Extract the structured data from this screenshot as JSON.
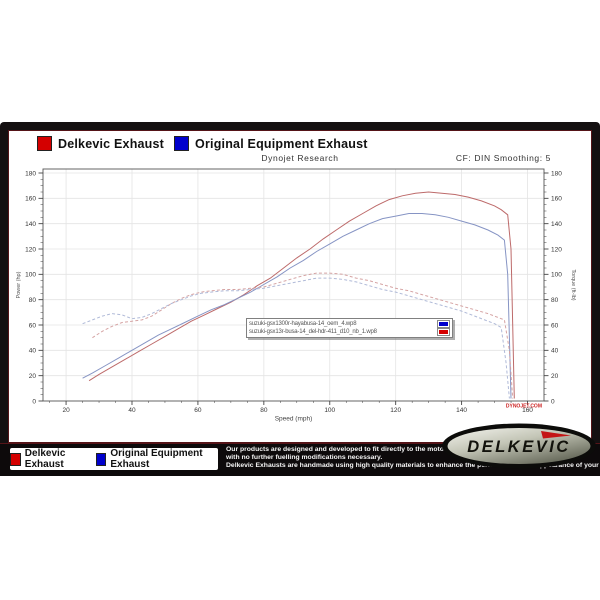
{
  "top_legend": {
    "items": [
      {
        "label": "Delkevic Exhaust",
        "color": "#d40000"
      },
      {
        "label": "Original Equipment Exhaust",
        "color": "#0000cc"
      }
    ]
  },
  "chart": {
    "title": "Dynojet Research",
    "smoothing_label": "CF: DIN Smoothing: 5",
    "watermark": "DYNOJET.COM"
  },
  "chart_data": {
    "type": "line",
    "title": "Dynojet Research",
    "xlabel": "Speed (mph)",
    "ylabel_left": "Power (hp)",
    "ylabel_right": "Torque (ft-lb)",
    "xlim": [
      13,
      165
    ],
    "ylim": [
      0,
      180
    ],
    "x_ticks": [
      20,
      40,
      60,
      80,
      100,
      120,
      140,
      160
    ],
    "y_ticks": [
      0,
      20,
      40,
      60,
      80,
      100,
      120,
      140,
      160,
      180
    ],
    "grid": true,
    "legend_position": "center",
    "series": [
      {
        "name": "Delkevic Exhaust - Power",
        "axis": "left",
        "style": "solid",
        "color": "#bd6a6a",
        "points": [
          [
            27,
            16
          ],
          [
            30,
            21
          ],
          [
            34,
            27
          ],
          [
            38,
            33
          ],
          [
            42,
            39
          ],
          [
            46,
            45
          ],
          [
            50,
            51
          ],
          [
            54,
            57
          ],
          [
            58,
            63
          ],
          [
            62,
            68
          ],
          [
            66,
            73
          ],
          [
            70,
            78
          ],
          [
            74,
            84
          ],
          [
            78,
            91
          ],
          [
            82,
            97
          ],
          [
            86,
            105
          ],
          [
            90,
            113
          ],
          [
            94,
            120
          ],
          [
            98,
            128
          ],
          [
            102,
            135
          ],
          [
            106,
            142
          ],
          [
            110,
            148
          ],
          [
            114,
            154
          ],
          [
            118,
            159
          ],
          [
            122,
            162
          ],
          [
            126,
            164
          ],
          [
            130,
            165
          ],
          [
            134,
            164
          ],
          [
            138,
            163
          ],
          [
            142,
            161
          ],
          [
            146,
            158
          ],
          [
            150,
            154
          ],
          [
            152,
            151
          ],
          [
            154,
            147
          ],
          [
            155,
            120
          ],
          [
            155.5,
            60
          ],
          [
            156,
            2
          ]
        ]
      },
      {
        "name": "Original Equipment Exhaust - Power",
        "axis": "left",
        "style": "solid",
        "color": "#8694c4",
        "points": [
          [
            25,
            18
          ],
          [
            28,
            22
          ],
          [
            32,
            28
          ],
          [
            36,
            34
          ],
          [
            40,
            40
          ],
          [
            44,
            46
          ],
          [
            48,
            52
          ],
          [
            52,
            57
          ],
          [
            56,
            62
          ],
          [
            60,
            67
          ],
          [
            64,
            72
          ],
          [
            68,
            76
          ],
          [
            72,
            81
          ],
          [
            76,
            86
          ],
          [
            80,
            92
          ],
          [
            84,
            98
          ],
          [
            88,
            105
          ],
          [
            92,
            111
          ],
          [
            96,
            118
          ],
          [
            100,
            124
          ],
          [
            104,
            130
          ],
          [
            108,
            135
          ],
          [
            112,
            140
          ],
          [
            116,
            144
          ],
          [
            120,
            146
          ],
          [
            124,
            148
          ],
          [
            128,
            148
          ],
          [
            132,
            147
          ],
          [
            136,
            145
          ],
          [
            140,
            142
          ],
          [
            144,
            139
          ],
          [
            148,
            135
          ],
          [
            151,
            131
          ],
          [
            153,
            127
          ],
          [
            154,
            100
          ],
          [
            154.5,
            50
          ],
          [
            155,
            2
          ]
        ]
      },
      {
        "name": "Delkevic Exhaust - Torque",
        "axis": "right",
        "style": "dashed",
        "color": "#d5a3a3",
        "points": [
          [
            28,
            50
          ],
          [
            31,
            55
          ],
          [
            34,
            59
          ],
          [
            37,
            62
          ],
          [
            40,
            63
          ],
          [
            43,
            64
          ],
          [
            46,
            67
          ],
          [
            49,
            72
          ],
          [
            52,
            77
          ],
          [
            55,
            81
          ],
          [
            58,
            84
          ],
          [
            61,
            86
          ],
          [
            64,
            87
          ],
          [
            68,
            88
          ],
          [
            72,
            88
          ],
          [
            76,
            89
          ],
          [
            80,
            90
          ],
          [
            84,
            93
          ],
          [
            88,
            96
          ],
          [
            92,
            99
          ],
          [
            96,
            101
          ],
          [
            100,
            101
          ],
          [
            104,
            100
          ],
          [
            108,
            97
          ],
          [
            112,
            95
          ],
          [
            116,
            92
          ],
          [
            120,
            89
          ],
          [
            124,
            87
          ],
          [
            128,
            84
          ],
          [
            132,
            81
          ],
          [
            136,
            78
          ],
          [
            140,
            75
          ],
          [
            144,
            72
          ],
          [
            148,
            69
          ],
          [
            151,
            66
          ],
          [
            153,
            64
          ],
          [
            154.5,
            40
          ],
          [
            155.5,
            2
          ]
        ]
      },
      {
        "name": "Original Equipment Exhaust - Torque",
        "axis": "right",
        "style": "dashed",
        "color": "#b0bad8",
        "points": [
          [
            25,
            61
          ],
          [
            28,
            64
          ],
          [
            31,
            67
          ],
          [
            34,
            69
          ],
          [
            37,
            68
          ],
          [
            40,
            65
          ],
          [
            43,
            66
          ],
          [
            46,
            69
          ],
          [
            49,
            73
          ],
          [
            52,
            77
          ],
          [
            55,
            80
          ],
          [
            58,
            83
          ],
          [
            61,
            85
          ],
          [
            64,
            86
          ],
          [
            68,
            87
          ],
          [
            72,
            87
          ],
          [
            76,
            88
          ],
          [
            80,
            89
          ],
          [
            84,
            91
          ],
          [
            88,
            93
          ],
          [
            92,
            95
          ],
          [
            96,
            97
          ],
          [
            100,
            97
          ],
          [
            104,
            96
          ],
          [
            108,
            94
          ],
          [
            112,
            91
          ],
          [
            116,
            88
          ],
          [
            120,
            86
          ],
          [
            124,
            83
          ],
          [
            128,
            80
          ],
          [
            132,
            77
          ],
          [
            136,
            74
          ],
          [
            140,
            71
          ],
          [
            144,
            67
          ],
          [
            148,
            63
          ],
          [
            150,
            61
          ],
          [
            152,
            58
          ],
          [
            153.5,
            30
          ],
          [
            154.5,
            2
          ]
        ]
      }
    ]
  },
  "file_legend": {
    "rows": [
      {
        "label": "suzuki-gsx1300r-hayabusa-14_oem_4.wp8",
        "color": "#0000cc"
      },
      {
        "label": "suzuki-gsx13r-busa-14_del-hdr-411_d10_nb_1.wp8",
        "color": "#d40000"
      }
    ]
  },
  "bottom_bar": {
    "legend": [
      {
        "label": "Delkevic Exhaust",
        "color": "#d40000"
      },
      {
        "label": "Original Equipment Exhaust",
        "color": "#0000cc"
      }
    ],
    "lines": [
      "Our products are designed and developed to fit directly to the motorcycle",
      "with no further fuelling modifications necessary.",
      "Delkevic Exhausts are handmade using high quality materials to enhance the performance, and appearance of your motorcycle."
    ],
    "logo_text": "DELKEVIC"
  }
}
